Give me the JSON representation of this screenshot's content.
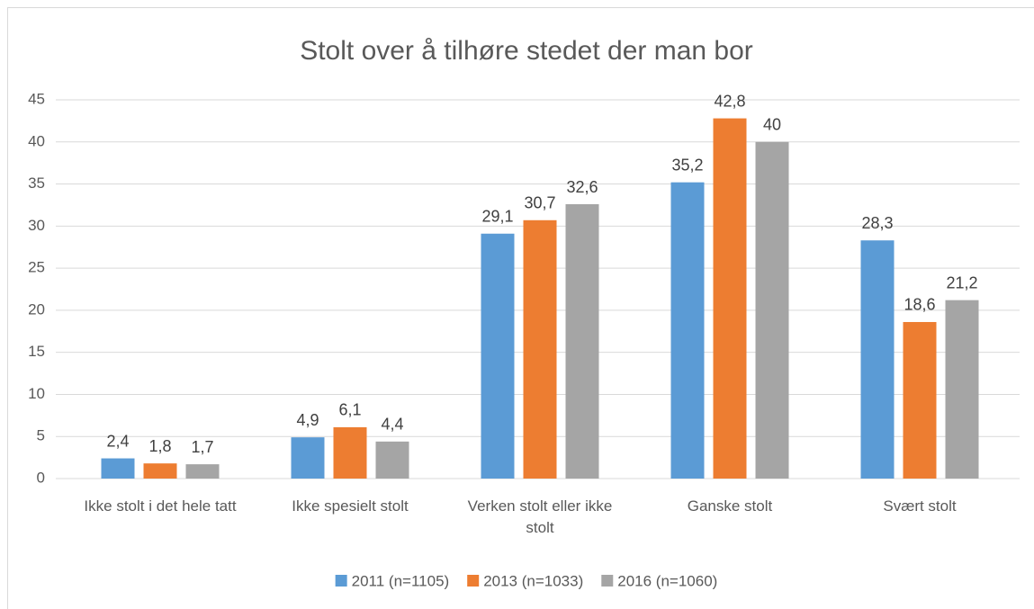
{
  "chart_data": {
    "type": "bar",
    "title": "Stolt over å tilhøre stedet der man bor",
    "categories": [
      "Ikke stolt i det hele tatt",
      "Ikke spesielt stolt",
      "Verken stolt eller ikke stolt",
      "Ganske stolt",
      "Svært stolt"
    ],
    "series": [
      {
        "name": "2011 (n=1105)",
        "color": "#5b9bd5",
        "values": [
          2.4,
          4.9,
          29.1,
          35.2,
          28.3
        ],
        "value_labels": [
          "2,4",
          "4,9",
          "29,1",
          "35,2",
          "28,3"
        ]
      },
      {
        "name": "2013 (n=1033)",
        "color": "#ed7d31",
        "values": [
          1.8,
          6.1,
          30.7,
          42.8,
          18.6
        ],
        "value_labels": [
          "1,8",
          "6,1",
          "30,7",
          "42,8",
          "18,6"
        ]
      },
      {
        "name": "2016 (n=1060)",
        "color": "#a5a5a5",
        "values": [
          1.7,
          4.4,
          32.6,
          40,
          21.2
        ],
        "value_labels": [
          "1,7",
          "4,4",
          "32,6",
          "40",
          "21,2"
        ]
      }
    ],
    "ylim": [
      0,
      45
    ],
    "yticks": [
      0,
      5,
      10,
      15,
      20,
      25,
      30,
      35,
      40,
      45
    ],
    "grid": true,
    "legend": "bottom"
  }
}
